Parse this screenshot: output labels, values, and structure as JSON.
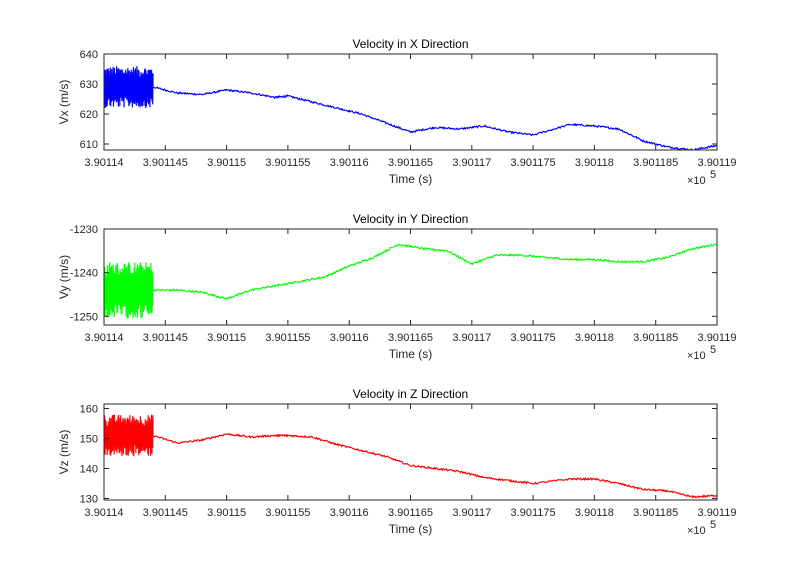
{
  "chart_data": [
    {
      "type": "line",
      "title": "Velocity in X Direction",
      "xlabel": "Time (s)",
      "ylabel": "Vx (m/s)",
      "x_scale_label": "×10",
      "x_scale_exponent": "5",
      "xlim": [
        390114,
        390119
      ],
      "ylim": [
        608,
        640
      ],
      "xticks": [
        390114,
        390114.5,
        390115,
        390115.5,
        390116,
        390116.5,
        390117,
        390117.5,
        390118,
        390118.5,
        390119
      ],
      "xtick_labels": [
        "3.90114",
        "3.901145",
        "3.90115",
        "3.901155",
        "3.90116",
        "3.901165",
        "3.90117",
        "3.901175",
        "3.90118",
        "3.901185",
        "3.90119"
      ],
      "yticks": [
        610,
        620,
        630,
        640
      ],
      "ytick_labels": [
        "610",
        "620",
        "630",
        "640"
      ],
      "color": "#0000ff",
      "noisy_segment": {
        "x_start": 390114,
        "x_end": 390114.4,
        "center": 629,
        "amplitude": 7
      },
      "series": [
        {
          "x": [
            390114.4,
            390114.6,
            390114.8,
            390115.0,
            390115.2,
            390115.4,
            390115.5,
            390115.7,
            390115.9,
            390116.1,
            390116.3,
            390116.5,
            390116.7,
            390116.9,
            390117.1,
            390117.3,
            390117.5,
            390117.8,
            390118.0,
            390118.2,
            390118.4,
            390118.6,
            390118.8,
            390119.0
          ],
          "y": [
            629,
            627,
            626.5,
            628,
            627,
            625.5,
            626,
            624,
            622,
            620,
            617,
            614,
            615.5,
            615,
            616,
            614,
            613,
            616.5,
            616,
            615,
            611,
            609,
            608,
            609.5
          ]
        }
      ]
    },
    {
      "type": "line",
      "title": "Velocity in Y Direction",
      "xlabel": "Time (s)",
      "ylabel": "Vy (m/s)",
      "x_scale_label": "×10",
      "x_scale_exponent": "5",
      "xlim": [
        390114,
        390119
      ],
      "ylim": [
        -1252,
        -1230
      ],
      "xticks": [
        390114,
        390114.5,
        390115,
        390115.5,
        390116,
        390116.5,
        390117,
        390117.5,
        390118,
        390118.5,
        390119
      ],
      "xtick_labels": [
        "3.90114",
        "3.901145",
        "3.90115",
        "3.901155",
        "3.90116",
        "3.901165",
        "3.90117",
        "3.901175",
        "3.90118",
        "3.901185",
        "3.90119"
      ],
      "yticks": [
        -1250,
        -1240,
        -1230
      ],
      "ytick_labels": [
        "-1250",
        "-1240",
        "-1230"
      ],
      "color": "#00ff00",
      "noisy_segment": {
        "x_start": 390114,
        "x_end": 390114.4,
        "center": -1244,
        "amplitude": 6.5
      },
      "series": [
        {
          "x": [
            390114.4,
            390114.6,
            390114.8,
            390115.0,
            390115.2,
            390115.4,
            390115.6,
            390115.8,
            390116.0,
            390116.2,
            390116.4,
            390116.6,
            390116.8,
            390117.0,
            390117.2,
            390117.4,
            390117.6,
            390117.8,
            390118.0,
            390118.2,
            390118.4,
            390118.6,
            390118.8,
            390119.0
          ],
          "y": [
            -1244,
            -1244,
            -1244.5,
            -1246,
            -1244,
            -1243,
            -1242,
            -1241,
            -1238.5,
            -1236.5,
            -1233.5,
            -1234.5,
            -1235,
            -1238,
            -1236,
            -1236,
            -1236.5,
            -1237,
            -1237,
            -1237.5,
            -1237.5,
            -1236.5,
            -1234.5,
            -1233.5
          ]
        }
      ]
    },
    {
      "type": "line",
      "title": "Velocity in Z Direction",
      "xlabel": "Time (s)",
      "ylabel": "Vz (m/s)",
      "x_scale_label": "×10",
      "x_scale_exponent": "5",
      "xlim": [
        390114,
        390119
      ],
      "ylim": [
        129.5,
        161.5
      ],
      "xticks": [
        390114,
        390114.5,
        390115,
        390115.5,
        390116,
        390116.5,
        390117,
        390117.5,
        390118,
        390118.5,
        390119
      ],
      "xtick_labels": [
        "3.90114",
        "3.901145",
        "3.90115",
        "3.901155",
        "3.90116",
        "3.901165",
        "3.90117",
        "3.901175",
        "3.90118",
        "3.901185",
        "3.90119"
      ],
      "yticks": [
        130,
        140,
        150,
        160
      ],
      "ytick_labels": [
        "130",
        "140",
        "150",
        "160"
      ],
      "color": "#ff0000",
      "noisy_segment": {
        "x_start": 390114,
        "x_end": 390114.4,
        "center": 151,
        "amplitude": 7
      },
      "series": [
        {
          "x": [
            390114.4,
            390114.6,
            390114.8,
            390115.0,
            390115.2,
            390115.4,
            390115.5,
            390115.7,
            390115.9,
            390116.1,
            390116.3,
            390116.5,
            390116.7,
            390116.9,
            390117.1,
            390117.3,
            390117.5,
            390117.8,
            390118.0,
            390118.2,
            390118.4,
            390118.6,
            390118.8,
            390119.0
          ],
          "y": [
            151,
            148.5,
            149.5,
            151.5,
            150.5,
            151,
            151,
            150.5,
            148,
            146,
            144,
            141,
            140,
            139,
            137,
            136,
            135,
            136.5,
            136.5,
            135,
            133,
            132.5,
            130.5,
            131
          ]
        }
      ]
    }
  ]
}
